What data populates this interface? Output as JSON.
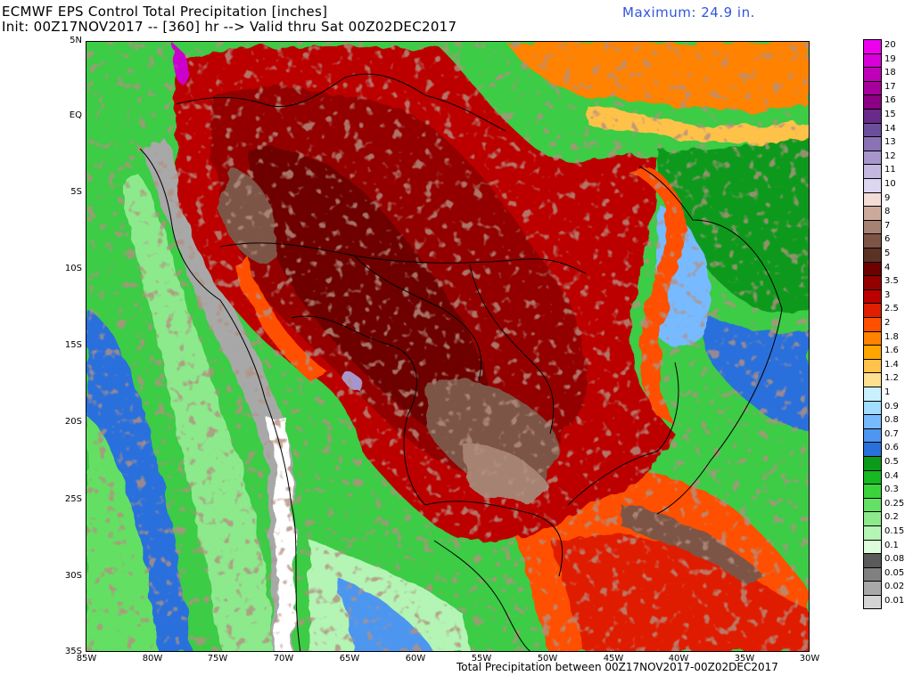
{
  "header": {
    "title": "ECMWF EPS Control Total Precipitation [inches]",
    "subtitle": "Init: 00Z17NOV2017 -- [360] hr --> Valid thru Sat 00Z02DEC2017",
    "maximum": "Maximum: 24.9 in."
  },
  "footer": {
    "caption": "Total Precipitation between 00Z17NOV2017-00Z02DEC2017"
  },
  "axes": {
    "lat_labels": [
      "5N",
      "EQ",
      "5S",
      "10S",
      "15S",
      "20S",
      "25S",
      "30S",
      "35S"
    ],
    "lon_labels": [
      "85W",
      "80W",
      "75W",
      "70W",
      "65W",
      "60W",
      "55W",
      "50W",
      "45W",
      "40W",
      "35W",
      "30W"
    ]
  },
  "legend": {
    "items": [
      {
        "label": "20",
        "color": "#ee00ee"
      },
      {
        "label": "19",
        "color": "#d800d8"
      },
      {
        "label": "18",
        "color": "#c000b8"
      },
      {
        "label": "17",
        "color": "#a8009c"
      },
      {
        "label": "16",
        "color": "#8c0084"
      },
      {
        "label": "15",
        "color": "#6a2a8a"
      },
      {
        "label": "14",
        "color": "#6c4f9c"
      },
      {
        "label": "13",
        "color": "#8a72b4"
      },
      {
        "label": "12",
        "color": "#a796cc"
      },
      {
        "label": "11",
        "color": "#c3b8e0"
      },
      {
        "label": "10",
        "color": "#dcd6f0"
      },
      {
        "label": "9",
        "color": "#f2dcd6"
      },
      {
        "label": "8",
        "color": "#cbaa9c"
      },
      {
        "label": "7",
        "color": "#a68272"
      },
      {
        "label": "6",
        "color": "#7d5446"
      },
      {
        "label": "5",
        "color": "#5a3226"
      },
      {
        "label": "4",
        "color": "#6e0000"
      },
      {
        "label": "3.5",
        "color": "#940000"
      },
      {
        "label": "3",
        "color": "#bc0000"
      },
      {
        "label": "2.5",
        "color": "#e01e00"
      },
      {
        "label": "2",
        "color": "#ff5000"
      },
      {
        "label": "1.8",
        "color": "#ff8200"
      },
      {
        "label": "1.6",
        "color": "#ffa500"
      },
      {
        "label": "1.4",
        "color": "#ffc24a"
      },
      {
        "label": "1.2",
        "color": "#ffe090"
      },
      {
        "label": "1",
        "color": "#c8f0ff"
      },
      {
        "label": "0.9",
        "color": "#a2dcff"
      },
      {
        "label": "0.8",
        "color": "#78baff"
      },
      {
        "label": "0.7",
        "color": "#4e96f0"
      },
      {
        "label": "0.6",
        "color": "#2a70dc"
      },
      {
        "label": "0.5",
        "color": "#0c9a1a"
      },
      {
        "label": "0.4",
        "color": "#16b824"
      },
      {
        "label": "0.3",
        "color": "#3cd23c"
      },
      {
        "label": "0.25",
        "color": "#64e064"
      },
      {
        "label": "0.2",
        "color": "#8cea8c"
      },
      {
        "label": "0.15",
        "color": "#b4f4b4"
      },
      {
        "label": "0.1",
        "color": "#dcfcdc"
      },
      {
        "label": "0.08",
        "color": "#5a5a5a"
      },
      {
        "label": "0.05",
        "color": "#808080"
      },
      {
        "label": "0.02",
        "color": "#a8a8a8"
      },
      {
        "label": "0.01",
        "color": "#d4d4d4"
      }
    ]
  }
}
